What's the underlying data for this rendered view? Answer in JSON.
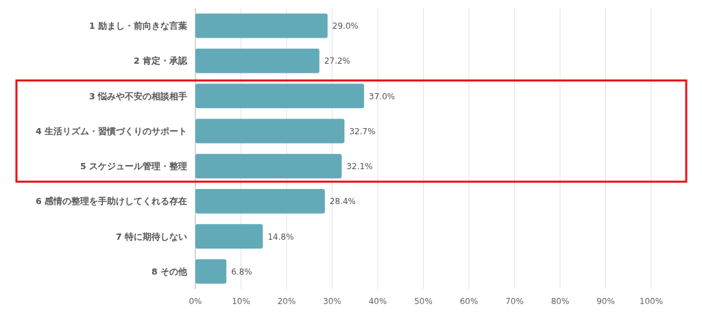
{
  "chart_data": {
    "type": "bar",
    "orientation": "horizontal",
    "categories": [
      "1 励まし・前向きな言葉",
      "2 肯定・承認",
      "3 悩みや不安の相談相手",
      "4 生活リズム・習慣づくりのサポート",
      "5 スケジュール管理・整理",
      "6 感情の整理を手助けしてくれる存在",
      "7 特に期待しない",
      "8 その他"
    ],
    "values": [
      29.0,
      27.2,
      37.0,
      32.7,
      32.1,
      28.4,
      14.8,
      6.8
    ],
    "value_labels": [
      "29.0%",
      "27.2%",
      "37.0%",
      "32.7%",
      "32.1%",
      "28.4%",
      "14.8%",
      "6.8%"
    ],
    "color": "#62aab8",
    "xlim": [
      0,
      100
    ],
    "xticks": [
      {
        "value": 0,
        "label": "0%"
      },
      {
        "value": 10,
        "label": "10%"
      },
      {
        "value": 20,
        "label": "20%"
      },
      {
        "value": 30,
        "label": "30%"
      },
      {
        "value": 40,
        "label": "40%"
      },
      {
        "value": 50,
        "label": "50%"
      },
      {
        "value": 60,
        "label": "60%"
      },
      {
        "value": 70,
        "label": "70%"
      },
      {
        "value": 80,
        "label": "80%"
      },
      {
        "value": 90,
        "label": "90%"
      },
      {
        "value": 100,
        "label": "100%"
      }
    ],
    "grid": "x"
  }
}
